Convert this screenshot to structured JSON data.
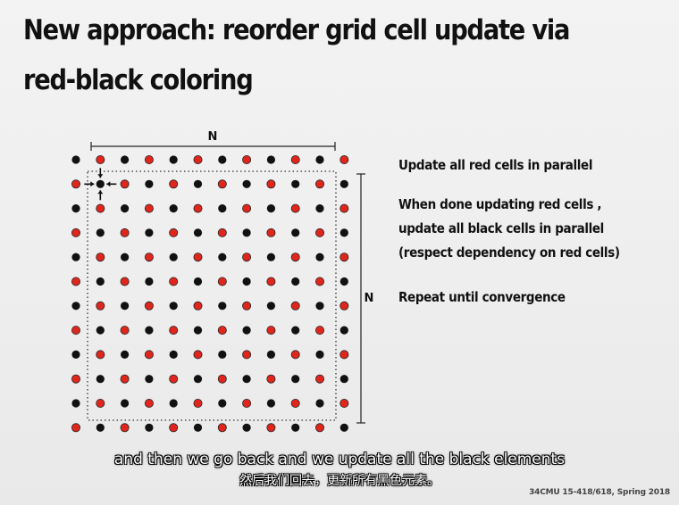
{
  "slide": {
    "title_line1": "New approach: reorder grid cell update via",
    "title_line2": "red-black coloring",
    "grid": {
      "n_label_top": "N",
      "n_label_right": "N",
      "rows": 12,
      "cols": 12,
      "red_color": "#e0261c",
      "black_color": "#111111",
      "red_when_row_plus_col": "odd",
      "highlighted_cell": {
        "row": 1,
        "col": 1
      }
    },
    "bullets": [
      {
        "lines": [
          "Update all red cells in parallel"
        ]
      },
      {
        "lines": [
          "When done updating red cells ,",
          "update all black cells in parallel",
          "(respect dependency on red cells)"
        ]
      },
      {
        "lines": [
          "Repeat until convergence"
        ]
      }
    ],
    "footer": "34CMU 15-418/618, Spring 2018"
  },
  "subtitles": {
    "english": "and then we go back and we update all the black elements",
    "chinese": "然后我们回去，更新所有黑色元素。"
  }
}
